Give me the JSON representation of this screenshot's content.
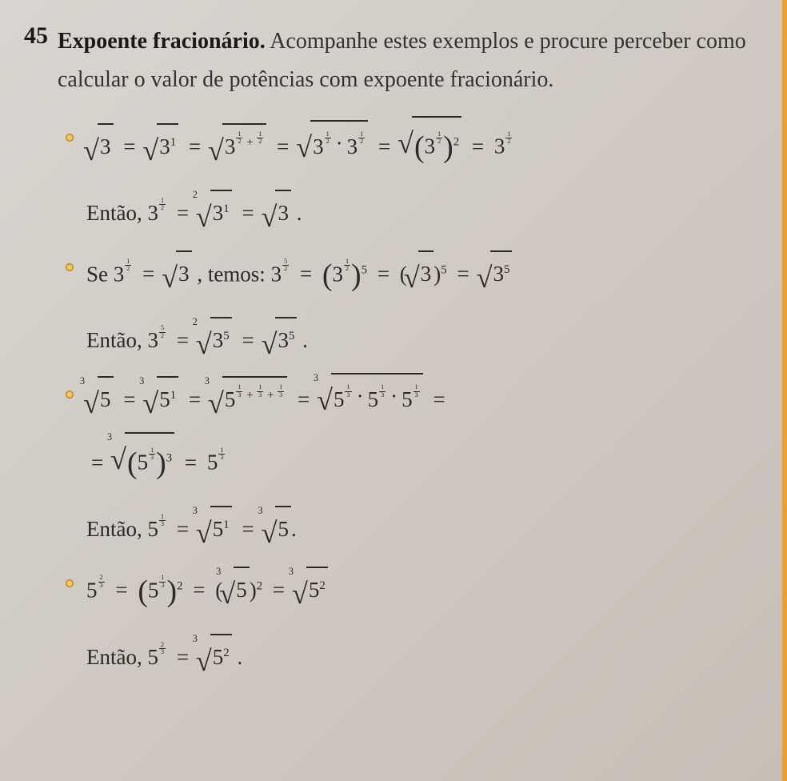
{
  "problem_number": "45",
  "title_bold": "Expoente fracionário.",
  "intro_rest": " Acompanhe estes exemplos e procure perceber como calcular o valor de potências com expoente fracionário.",
  "lines": {
    "l1_p1": "3",
    "l1_p2": "3",
    "l1_p2_sup": "1",
    "l1_p3": "3",
    "l1_p3_f1n": "1",
    "l1_p3_f1d": "2",
    "l1_p3_plus": "+",
    "l1_p3_f2n": "1",
    "l1_p3_f2d": "2",
    "l1_p4a": "3",
    "l1_p4a_fn": "1",
    "l1_p4a_fd": "2",
    "l1_p4b": "3",
    "l1_p4b_fn": "1",
    "l1_p4b_fd": "2",
    "l1_p5": "3",
    "l1_p5_fn": "1",
    "l1_p5_fd": "2",
    "l1_p5_outer": "2",
    "l1_res": "3",
    "l1_res_fn": "1",
    "l1_res_fd": "2",
    "l2_word": "Então, ",
    "l2_a": "3",
    "l2_a_fn": "1",
    "l2_a_fd": "2",
    "l2_b_idx": "2",
    "l2_b": "3",
    "l2_b_sup": "1",
    "l2_c": "3",
    "l3_word1": "Se ",
    "l3_a": "3",
    "l3_a_fn": "1",
    "l3_a_fd": "2",
    "l3_b": "3",
    "l3_word2": ", temos: ",
    "l3_c": "3",
    "l3_c_fn": "5",
    "l3_c_fd": "2",
    "l3_d": "3",
    "l3_d_fn": "1",
    "l3_d_fd": "2",
    "l3_d_outer": "5",
    "l3_e": "3",
    "l3_e_outer": "5",
    "l3_f": "3",
    "l3_f_sup": "5",
    "l4_word": "Então, ",
    "l4_a": "3",
    "l4_a_fn": "5",
    "l4_a_fd": "2",
    "l4_b_idx": "2",
    "l4_b": "3",
    "l4_b_sup": "5",
    "l4_c": "3",
    "l4_c_sup": "5",
    "l5_idx": "3",
    "l5_p1": "5",
    "l5_p2": "5",
    "l5_p2_sup": "1",
    "l5_p3": "5",
    "l5_p3_f1n": "1",
    "l5_p3_f1d": "3",
    "l5_p3_f2n": "1",
    "l5_p3_f2d": "3",
    "l5_p3_f3n": "1",
    "l5_p3_f3d": "3",
    "l5_p4a": "5",
    "l5_p4a_fn": "1",
    "l5_p4a_fd": "3",
    "l5_p4b": "5",
    "l5_p4b_fn": "1",
    "l5_p4b_fd": "3",
    "l5_p4c": "5",
    "l5_p4c_fn": "1",
    "l5_p4c_fd": "3",
    "l6_a": "5",
    "l6_a_fn": "1",
    "l6_a_fd": "3",
    "l6_a_outer": "3",
    "l6_b": "5",
    "l6_b_fn": "1",
    "l6_b_fd": "3",
    "l7_word": "Então, ",
    "l7_a": "5",
    "l7_a_fn": "1",
    "l7_a_fd": "3",
    "l7_b_idx": "3",
    "l7_b": "5",
    "l7_b_sup": "1",
    "l7_c_idx": "3",
    "l7_c": "5",
    "l8_a": "5",
    "l8_a_fn": "2",
    "l8_a_fd": "3",
    "l8_b": "5",
    "l8_b_fn": "1",
    "l8_b_fd": "3",
    "l8_b_outer": "2",
    "l8_c_idx": "3",
    "l8_c": "5",
    "l8_c_outer": "2",
    "l8_d_idx": "3",
    "l8_d": "5",
    "l8_d_sup": "2",
    "l9_word": "Então, ",
    "l9_a": "5",
    "l9_a_fn": "2",
    "l9_a_fd": "3",
    "l9_b_idx": "3",
    "l9_b": "5",
    "l9_b_sup": "2"
  },
  "symbols": {
    "eq": "=",
    "plus": "+",
    "dot": "·",
    "period": "."
  },
  "colors": {
    "background": "#d8d5d0",
    "text": "#2a2a2a",
    "bullet": "#d89020",
    "edge": "#e8a033"
  }
}
